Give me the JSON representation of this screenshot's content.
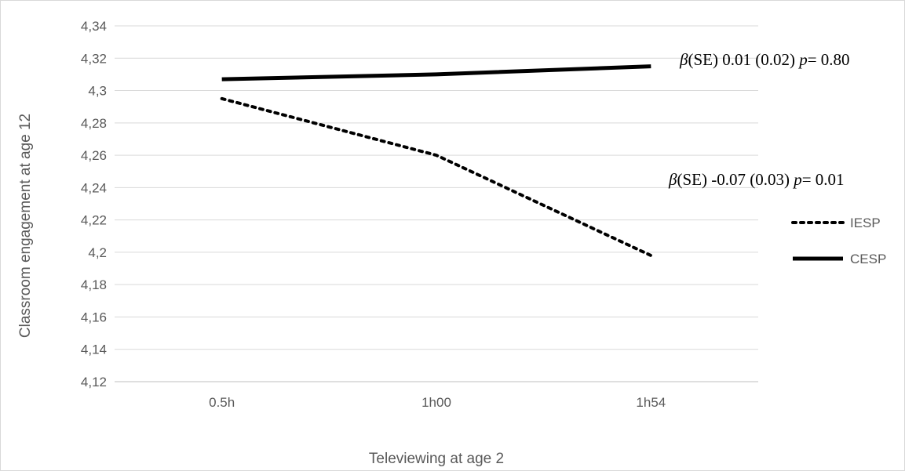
{
  "chart_data": {
    "type": "line",
    "title": "",
    "xlabel": "Televiewing at age 2",
    "ylabel": "Classroom engagement at age 12",
    "categories": [
      "0.5h",
      "1h00",
      "1h54"
    ],
    "ylim": [
      4.12,
      4.34
    ],
    "ytick_step": 0.02,
    "yticks": [
      "4,12",
      "4,14",
      "4,16",
      "4,18",
      "4,2",
      "4,22",
      "4,24",
      "4,26",
      "4,28",
      "4,3",
      "4,32",
      "4,34"
    ],
    "grid": true,
    "legend_position": "right",
    "series": [
      {
        "name": "IESP",
        "values": [
          4.295,
          4.26,
          4.198
        ],
        "style": "dotted",
        "color": "#000000"
      },
      {
        "name": "CESP",
        "values": [
          4.307,
          4.31,
          4.315
        ],
        "style": "solid",
        "color": "#000000"
      }
    ],
    "annotations": [
      {
        "series": "CESP",
        "beta": "β",
        "se_label": "(SE) 0.01 (0.02) ",
        "p": "p",
        "p_text": "= 0.80"
      },
      {
        "series": "IESP",
        "beta": "β",
        "se_label": "(SE) -0.07 (0.03) ",
        "p": "p",
        "p_text": "= 0.01"
      }
    ]
  }
}
